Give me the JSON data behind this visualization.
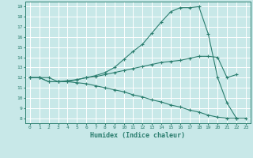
{
  "xlabel": "Humidex (Indice chaleur)",
  "bg_color": "#c8e8e8",
  "grid_color": "#ffffff",
  "line_color": "#2a7d6e",
  "xlim": [
    -0.5,
    23.5
  ],
  "ylim": [
    7.5,
    19.5
  ],
  "xticks": [
    0,
    1,
    2,
    3,
    4,
    5,
    6,
    7,
    8,
    9,
    10,
    11,
    12,
    13,
    14,
    15,
    16,
    17,
    18,
    19,
    20,
    21,
    22,
    23
  ],
  "yticks": [
    8,
    9,
    10,
    11,
    12,
    13,
    14,
    15,
    16,
    17,
    18,
    19
  ],
  "line1_x": [
    0,
    1,
    2,
    3,
    4,
    5,
    6,
    7,
    8,
    9,
    10,
    11,
    12,
    13,
    14,
    15,
    16,
    17,
    18,
    19,
    20,
    21,
    22
  ],
  "line1_y": [
    12,
    12,
    12,
    11.6,
    11.6,
    11.8,
    12.0,
    12.2,
    12.5,
    13.0,
    13.8,
    14.6,
    15.3,
    16.4,
    17.5,
    18.5,
    18.9,
    18.9,
    19.0,
    16.3,
    12.0,
    9.5,
    8.0
  ],
  "line2_x": [
    0,
    1,
    2,
    3,
    4,
    5,
    6,
    7,
    8,
    9,
    10,
    11,
    12,
    13,
    14,
    15,
    16,
    17,
    18,
    19,
    20,
    21,
    22
  ],
  "line2_y": [
    12,
    12,
    11.6,
    11.6,
    11.7,
    11.8,
    12.0,
    12.1,
    12.3,
    12.5,
    12.7,
    12.9,
    13.1,
    13.3,
    13.5,
    13.6,
    13.7,
    13.9,
    14.1,
    14.1,
    14.0,
    12.0,
    12.3
  ],
  "line3_x": [
    0,
    1,
    2,
    3,
    4,
    5,
    6,
    7,
    8,
    9,
    10,
    11,
    12,
    13,
    14,
    15,
    16,
    17,
    18,
    19,
    20,
    21,
    22,
    23
  ],
  "line3_y": [
    12,
    12,
    11.6,
    11.6,
    11.6,
    11.5,
    11.4,
    11.2,
    11.0,
    10.8,
    10.6,
    10.3,
    10.1,
    9.8,
    9.6,
    9.3,
    9.1,
    8.8,
    8.6,
    8.3,
    8.1,
    8.0,
    8.0,
    8.0
  ]
}
